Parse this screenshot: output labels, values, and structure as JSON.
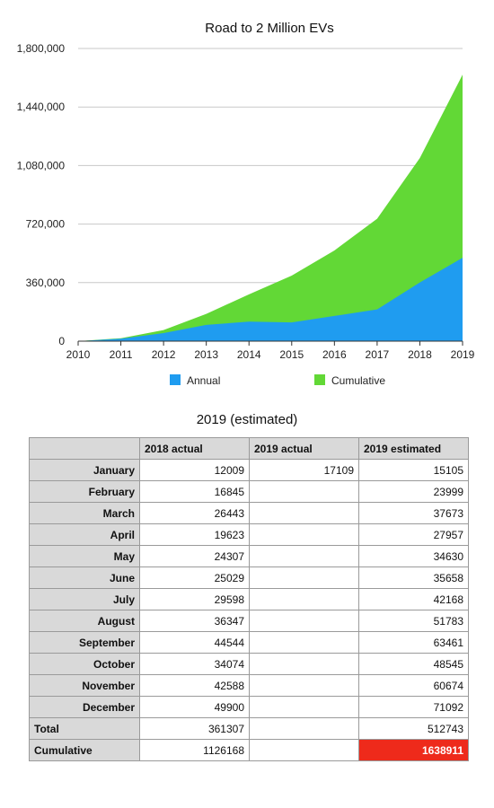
{
  "chart_data": {
    "type": "area",
    "title": "Road to 2 Million EVs",
    "x": [
      "2010",
      "2011",
      "2012",
      "2013",
      "2014",
      "2015",
      "2016",
      "2017",
      "2018",
      "2019"
    ],
    "series": [
      {
        "name": "Annual",
        "color": "#1f9cf0",
        "values": [
          200,
          15000,
          50000,
          100000,
          120000,
          115000,
          155000,
          195000,
          361307,
          512743
        ]
      },
      {
        "name": "Cumulative",
        "color": "#62d836",
        "values": [
          200,
          18000,
          68000,
          168000,
          288000,
          403000,
          558000,
          753000,
          1126168,
          1638911
        ]
      }
    ],
    "yticks": [
      "0",
      "360,000",
      "720,000",
      "1,080,000",
      "1,440,000",
      "1,800,000"
    ],
    "ylim": [
      0,
      1800000
    ],
    "grid": true,
    "legend_position": "bottom"
  },
  "table": {
    "title": "2019 (estimated)",
    "columns": [
      "",
      "2018 actual",
      "2019 actual",
      "2019 estimated"
    ],
    "rows": [
      {
        "label": "January",
        "c1": "12009",
        "c2": "17109",
        "c3": "15105"
      },
      {
        "label": "February",
        "c1": "16845",
        "c2": "",
        "c3": "23999"
      },
      {
        "label": "March",
        "c1": "26443",
        "c2": "",
        "c3": "37673"
      },
      {
        "label": "April",
        "c1": "19623",
        "c2": "",
        "c3": "27957"
      },
      {
        "label": "May",
        "c1": "24307",
        "c2": "",
        "c3": "34630"
      },
      {
        "label": "June",
        "c1": "25029",
        "c2": "",
        "c3": "35658"
      },
      {
        "label": "July",
        "c1": "29598",
        "c2": "",
        "c3": "42168"
      },
      {
        "label": "August",
        "c1": "36347",
        "c2": "",
        "c3": "51783"
      },
      {
        "label": "September",
        "c1": "44544",
        "c2": "",
        "c3": "63461"
      },
      {
        "label": "October",
        "c1": "34074",
        "c2": "",
        "c3": "48545"
      },
      {
        "label": "November",
        "c1": "42588",
        "c2": "",
        "c3": "60674"
      },
      {
        "label": "December",
        "c1": "49900",
        "c2": "",
        "c3": "71092"
      }
    ],
    "total": {
      "label": "Total",
      "c1": "361307",
      "c2": "",
      "c3": "512743"
    },
    "cumulative": {
      "label": "Cumulative",
      "c1": "1126168",
      "c2": "",
      "c3": "1638911"
    }
  }
}
